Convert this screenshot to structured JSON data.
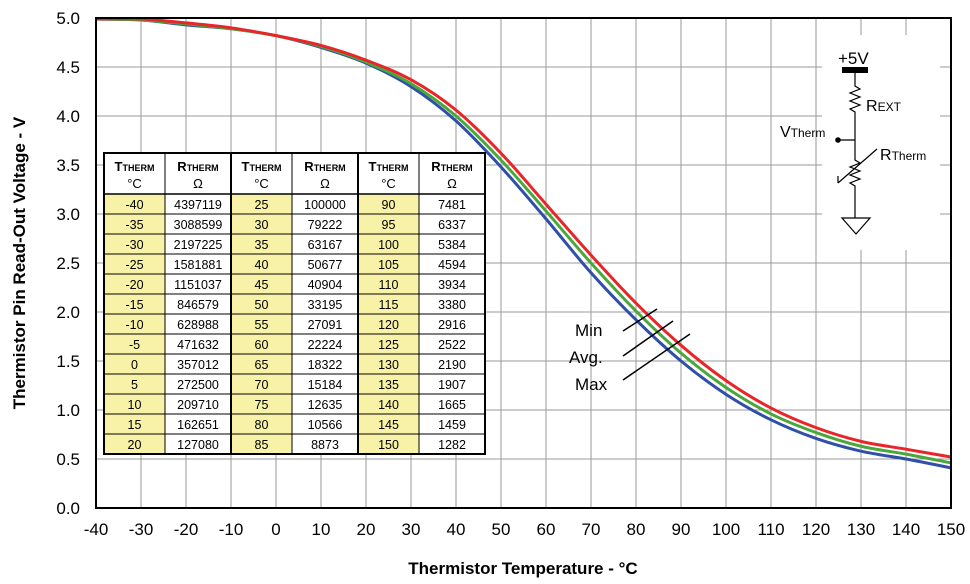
{
  "chart_data": {
    "type": "line",
    "xlabel": "Thermistor Temperature - °C",
    "ylabel": "Thermistor Pin Read-Out Voltage - V",
    "xlim": [
      -40,
      150
    ],
    "ylim": [
      0,
      5
    ],
    "xticks": [
      "-40",
      "-30",
      "-20",
      "-10",
      "0",
      "10",
      "20",
      "30",
      "40",
      "50",
      "60",
      "70",
      "80",
      "90",
      "100",
      "110",
      "120",
      "130",
      "140",
      "150"
    ],
    "yticks": [
      "0.0",
      "0.5",
      "1.0",
      "1.5",
      "2.0",
      "2.5",
      "3.0",
      "3.5",
      "4.0",
      "4.5",
      "5.0"
    ],
    "grid": true,
    "series": [
      {
        "name": "Min",
        "color": "#2f4fa8",
        "x": [
          -40,
          -30,
          -20,
          -10,
          0,
          10,
          20,
          30,
          40,
          50,
          60,
          70,
          80,
          90,
          100,
          110,
          120,
          130,
          140,
          150
        ],
        "y": [
          4.99,
          4.98,
          4.93,
          4.89,
          4.82,
          4.7,
          4.54,
          4.3,
          3.95,
          3.48,
          2.95,
          2.4,
          1.92,
          1.5,
          1.16,
          0.9,
          0.71,
          0.58,
          0.5,
          0.41
        ]
      },
      {
        "name": "Avg.",
        "color": "#4aa83a",
        "x": [
          -40,
          -30,
          -20,
          -10,
          0,
          10,
          20,
          30,
          40,
          50,
          60,
          70,
          80,
          90,
          100,
          110,
          120,
          130,
          140,
          150
        ],
        "y": [
          4.99,
          4.98,
          4.94,
          4.89,
          4.82,
          4.71,
          4.55,
          4.33,
          4.0,
          3.55,
          3.03,
          2.5,
          2.01,
          1.58,
          1.23,
          0.96,
          0.77,
          0.63,
          0.55,
          0.46
        ]
      },
      {
        "name": "Max",
        "color": "#e8262a",
        "x": [
          -40,
          -30,
          -20,
          -10,
          0,
          10,
          20,
          30,
          40,
          50,
          60,
          70,
          80,
          90,
          100,
          110,
          120,
          130,
          140,
          150
        ],
        "y": [
          4.99,
          4.99,
          4.95,
          4.9,
          4.82,
          4.72,
          4.57,
          4.37,
          4.06,
          3.62,
          3.1,
          2.58,
          2.09,
          1.66,
          1.3,
          1.02,
          0.82,
          0.68,
          0.6,
          0.52
        ]
      }
    ],
    "curve_labels": [
      "Min",
      "Avg.",
      "Max"
    ]
  },
  "schematic": {
    "supply": "+5V",
    "rext_main": "R",
    "rext_sub": "EXT",
    "vtherm_main": "V",
    "vtherm_sub": "Therm",
    "rtherm_main": "R",
    "rtherm_sub": "Therm"
  },
  "table": {
    "header_t_main": "T",
    "header_t_sub": "THERM",
    "header_r_main": "R",
    "header_r_sub": "THERM",
    "unit_t": "°C",
    "unit_r": "Ω",
    "row_fill": "#f7f2a8",
    "columns": [
      {
        "temps": [
          "-40",
          "-35",
          "-30",
          "-25",
          "-20",
          "-15",
          "-10",
          "-5",
          "0",
          "5",
          "10",
          "15",
          "20"
        ],
        "res": [
          "4397119",
          "3088599",
          "2197225",
          "1581881",
          "1151037",
          "846579",
          "628988",
          "471632",
          "357012",
          "272500",
          "209710",
          "162651",
          "127080"
        ]
      },
      {
        "temps": [
          "25",
          "30",
          "35",
          "40",
          "45",
          "50",
          "55",
          "60",
          "65",
          "70",
          "75",
          "80",
          "85"
        ],
        "res": [
          "100000",
          "79222",
          "63167",
          "50677",
          "40904",
          "33195",
          "27091",
          "22224",
          "18322",
          "15184",
          "12635",
          "10566",
          "8873"
        ]
      },
      {
        "temps": [
          "90",
          "95",
          "100",
          "105",
          "110",
          "115",
          "120",
          "125",
          "130",
          "135",
          "140",
          "145",
          "150"
        ],
        "res": [
          "7481",
          "6337",
          "5384",
          "4594",
          "3934",
          "3380",
          "2916",
          "2522",
          "2190",
          "1907",
          "1665",
          "1459",
          "1282"
        ]
      }
    ]
  }
}
